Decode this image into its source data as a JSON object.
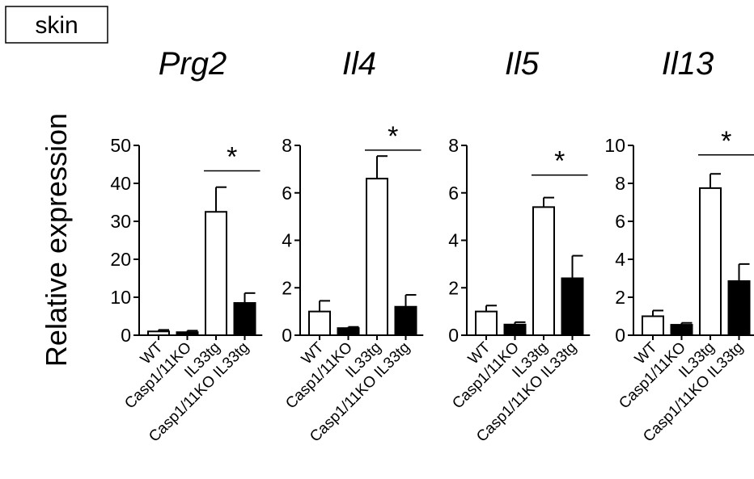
{
  "tissue_label": "skin",
  "y_axis_label": "Relative expression",
  "colors": {
    "open_bar": "#ffffff",
    "filled_bar": "#000000",
    "stroke": "#000000"
  },
  "chart_data": [
    {
      "type": "bar",
      "title": "Prg2",
      "categories": [
        "WT",
        "Casp1/11KO",
        "IL33tg",
        "Casp1/11KO IL33tg"
      ],
      "fill": [
        "open",
        "filled",
        "open",
        "filled"
      ],
      "values": [
        1.0,
        0.8,
        32.5,
        8.5
      ],
      "errors": [
        0.4,
        0.4,
        6.5,
        2.6
      ],
      "ylim": [
        0,
        50
      ],
      "yticks": [
        0,
        10,
        20,
        30,
        40,
        50
      ],
      "significance": {
        "label": "*",
        "from": 2,
        "to": 3,
        "y": 43.3
      }
    },
    {
      "type": "bar",
      "title": "Il4",
      "categories": [
        "WT",
        "Casp1/11KO",
        "IL33tg",
        "Casp1/11KO IL33tg"
      ],
      "fill": [
        "open",
        "filled",
        "open",
        "filled"
      ],
      "values": [
        1.0,
        0.3,
        6.6,
        1.2
      ],
      "errors": [
        0.45,
        0.05,
        0.95,
        0.5
      ],
      "ylim": [
        0,
        8
      ],
      "yticks": [
        0,
        2,
        4,
        6,
        8
      ],
      "significance": {
        "label": "*",
        "from": 2,
        "to": 3,
        "y": 7.8
      }
    },
    {
      "type": "bar",
      "title": "Il5",
      "categories": [
        "WT",
        "Casp1/11KO",
        "IL33tg",
        "Casp1/11KO IL33tg"
      ],
      "fill": [
        "open",
        "filled",
        "open",
        "filled"
      ],
      "values": [
        1.0,
        0.45,
        5.4,
        2.4
      ],
      "errors": [
        0.25,
        0.1,
        0.4,
        0.95
      ],
      "ylim": [
        0,
        8
      ],
      "yticks": [
        0,
        2,
        4,
        6,
        8
      ],
      "significance": {
        "label": "*",
        "from": 2,
        "to": 3,
        "y": 6.75
      }
    },
    {
      "type": "bar",
      "title": "Il13",
      "categories": [
        "WT",
        "Casp1/11KO",
        "IL33tg",
        "Casp1/11KO IL33tg"
      ],
      "fill": [
        "open",
        "filled",
        "open",
        "filled"
      ],
      "values": [
        1.0,
        0.55,
        7.75,
        2.85
      ],
      "errors": [
        0.3,
        0.1,
        0.75,
        0.9
      ],
      "ylim": [
        0,
        10
      ],
      "yticks": [
        0,
        2,
        4,
        6,
        8,
        10
      ],
      "significance": {
        "label": "*",
        "from": 2,
        "to": 3,
        "y": 9.5
      }
    }
  ]
}
